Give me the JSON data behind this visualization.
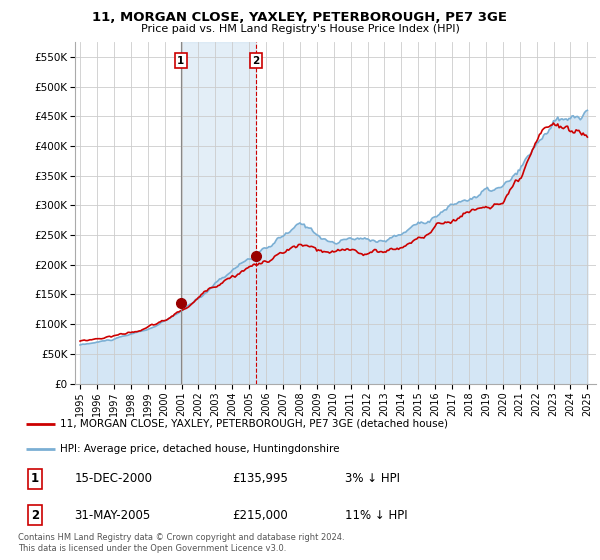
{
  "title": "11, MORGAN CLOSE, YAXLEY, PETERBOROUGH, PE7 3GE",
  "subtitle": "Price paid vs. HM Land Registry's House Price Index (HPI)",
  "ylim": [
    0,
    575000
  ],
  "yticks": [
    0,
    50000,
    100000,
    150000,
    200000,
    250000,
    300000,
    350000,
    400000,
    450000,
    500000,
    550000
  ],
  "ytick_labels": [
    "£0",
    "£50K",
    "£100K",
    "£150K",
    "£200K",
    "£250K",
    "£300K",
    "£350K",
    "£400K",
    "£450K",
    "£500K",
    "£550K"
  ],
  "background_color": "#ffffff",
  "plot_bg_color": "#ffffff",
  "grid_color": "#cccccc",
  "hpi_color": "#7bafd4",
  "hpi_fill_color": "#d4e6f5",
  "price_color": "#cc0000",
  "marker1_x": 2000.958,
  "marker2_x": 2005.417,
  "marker1_value": 135995,
  "marker2_value": 215000,
  "legend_line1": "11, MORGAN CLOSE, YAXLEY, PETERBOROUGH, PE7 3GE (detached house)",
  "legend_line2": "HPI: Average price, detached house, Huntingdonshire",
  "table_row1": [
    "1",
    "15-DEC-2000",
    "£135,995",
    "3% ↓ HPI"
  ],
  "table_row2": [
    "2",
    "31-MAY-2005",
    "£215,000",
    "11% ↓ HPI"
  ],
  "footer": "Contains HM Land Registry data © Crown copyright and database right 2024.\nThis data is licensed under the Open Government Licence v3.0.",
  "xlim_left": 1994.7,
  "xlim_right": 2025.5
}
